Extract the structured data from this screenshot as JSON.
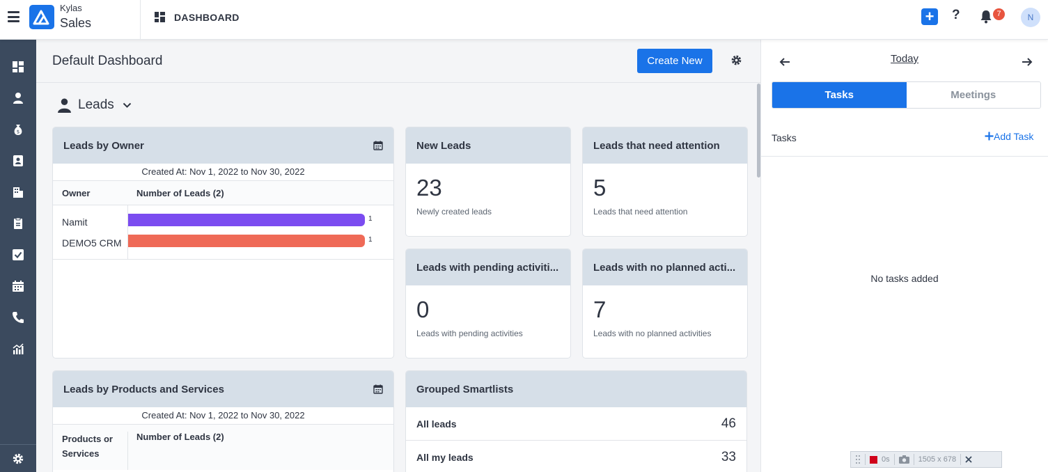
{
  "app": {
    "brand_top": "Kylas",
    "brand_bottom": "Sales",
    "section_title": "DASHBOARD",
    "notification_count": "7",
    "avatar_initial": "N"
  },
  "colors": {
    "accent": "#1a73e8",
    "sidebar": "#3b4a5e",
    "bar_purple": "#7b4cf0",
    "bar_red": "#ef6a57",
    "badge": "#e8553f"
  },
  "sidebar": {
    "icons": [
      "dashboard-icon",
      "contact-icon",
      "money-bag-icon",
      "contact-card-icon",
      "building-icon",
      "clipboard-icon",
      "checkbox-icon",
      "calendar-icon",
      "phone-icon",
      "report-chart-icon"
    ],
    "settings_icon": "settings-icon"
  },
  "header": {
    "title": "Default Dashboard",
    "create_button": "Create New"
  },
  "entity_selector": {
    "label": "Leads"
  },
  "leads_by_owner": {
    "title": "Leads by Owner",
    "created_range": "Created At: Nov 1, 2022 to Nov 30, 2022",
    "col_owner": "Owner",
    "col_count": "Number of Leads (2)",
    "rows": [
      {
        "name": "Namit",
        "value": 1,
        "value_label": "1"
      },
      {
        "name": "DEMO5 CRM",
        "value": 1,
        "value_label": "1"
      }
    ],
    "max": 1
  },
  "metrics": [
    {
      "title": "New Leads",
      "value": "23",
      "subtitle": "Newly created leads"
    },
    {
      "title": "Leads that need attention",
      "value": "5",
      "subtitle": "Leads that need attention"
    },
    {
      "title": "Leads with pending activiti...",
      "value": "0",
      "subtitle": "Leads with pending activities"
    },
    {
      "title": "Leads with no planned acti...",
      "value": "7",
      "subtitle": "Leads with no planned activities"
    }
  ],
  "leads_by_products": {
    "title": "Leads by Products and Services",
    "created_range": "Created At: Nov 1, 2022 to Nov 30, 2022",
    "col_product_line1": "Products or",
    "col_product_line2": "Services",
    "col_count": "Number of Leads (2)"
  },
  "smartlists": {
    "title": "Grouped Smartlists",
    "rows": [
      {
        "label": "All leads",
        "count": "46"
      },
      {
        "label": "All my leads",
        "count": "33"
      }
    ]
  },
  "right_panel": {
    "date_label": "Today",
    "tab_tasks": "Tasks",
    "tab_meetings": "Meetings",
    "tasks_label": "Tasks",
    "add_task": "Add Task",
    "empty_text": "No tasks added"
  },
  "recorder": {
    "time": "0s",
    "dims": "1505 x 678"
  }
}
